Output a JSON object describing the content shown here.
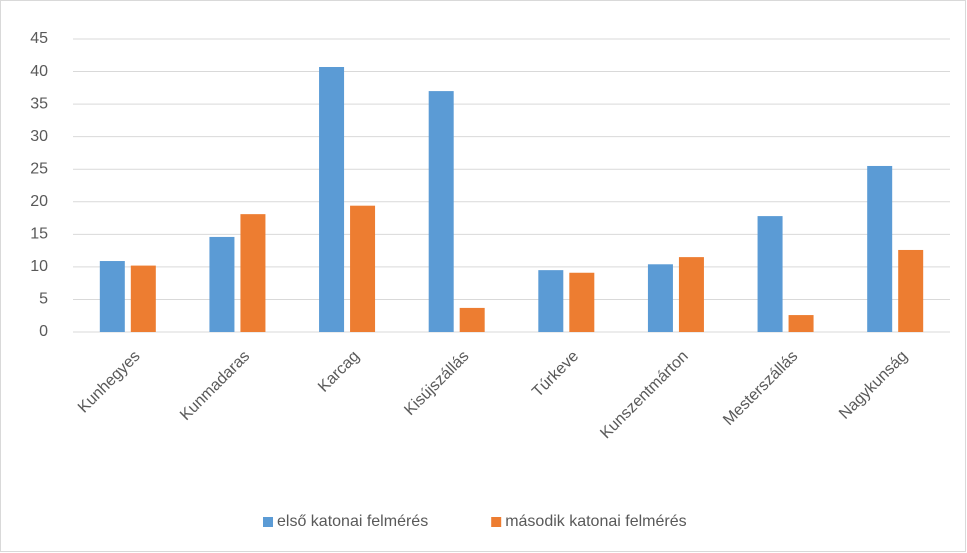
{
  "chart_data": {
    "type": "bar",
    "categories": [
      "Kunhegyes",
      "Kunmadaras",
      "Karcag",
      "Kisújszállás",
      "Túrkeve",
      "Kunszentmárton",
      "Mesterszállás",
      "Nagykunság"
    ],
    "series": [
      {
        "name": "első katonai felmérés",
        "color": "#5b9bd5",
        "values": [
          10.9,
          14.6,
          40.7,
          37.0,
          9.5,
          10.4,
          17.8,
          25.5
        ]
      },
      {
        "name": "második katonai felmérés",
        "color": "#ed7d31",
        "values": [
          10.2,
          18.1,
          19.4,
          3.7,
          9.1,
          11.5,
          2.6,
          12.6
        ]
      }
    ],
    "ylim": [
      0,
      45
    ],
    "yticks": [
      0,
      5,
      10,
      15,
      20,
      25,
      30,
      35,
      40,
      45
    ],
    "grid": true,
    "legend": "bottom"
  }
}
